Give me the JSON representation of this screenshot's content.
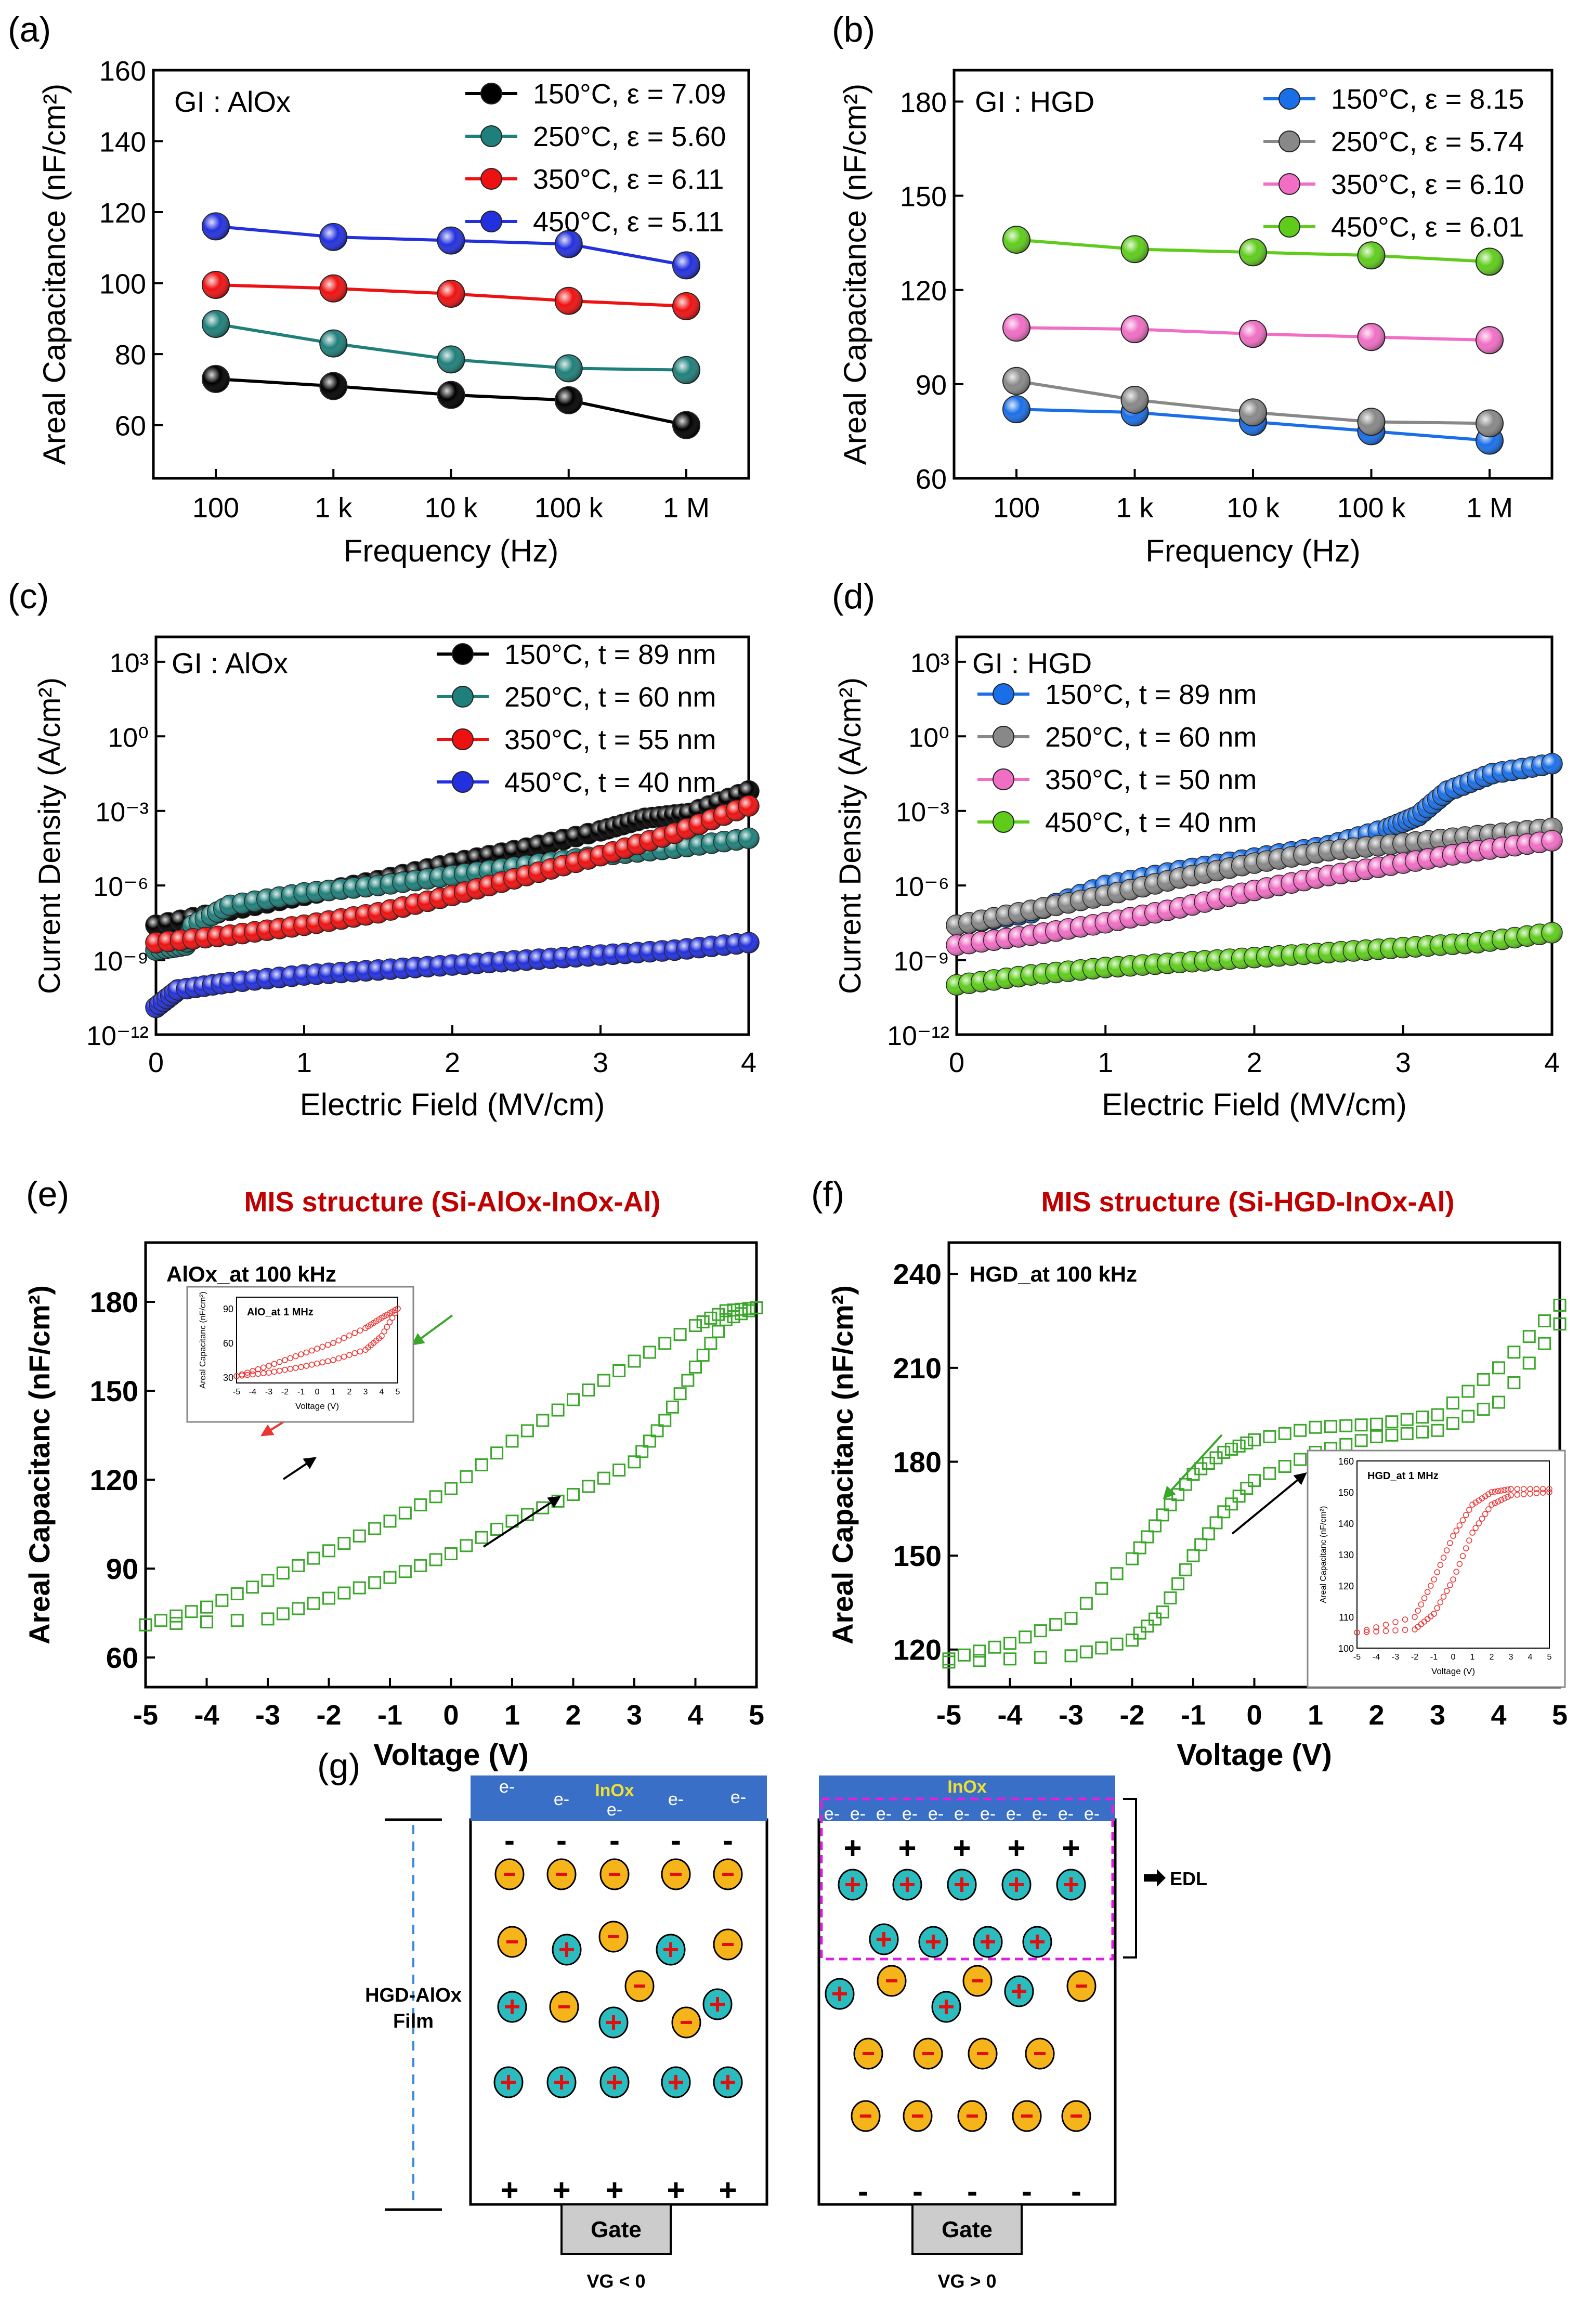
{
  "colors": {
    "c150": "#000000",
    "c250": "#1f7f7a",
    "c350": "#ee1111",
    "c450": "#2330dd",
    "h150": "#1a6fe8",
    "h250": "#888888",
    "h350": "#f06ec4",
    "h450": "#5fcc1c",
    "loop": "#3aa62a",
    "inset": "#ee3333",
    "title": "#c00000",
    "bar": "#3a6fc8",
    "minus": "#f5b51a",
    "plus": "#2bbcc0",
    "inox": "#f0e030",
    "edl": "#e020e0"
  },
  "panels": {
    "a": "(a)",
    "b": "(b)",
    "c": "(c)",
    "d": "(d)",
    "e": "(e)",
    "f": "(f)",
    "g": "(g)"
  },
  "chart_data": [
    {
      "id": "a",
      "type": "line",
      "annotation": "GI : AlOx",
      "xlabel": "Frequency (Hz)",
      "ylabel": "Areal Capacitance (nF/cm²)",
      "categories": [
        "100",
        "1 k",
        "10 k",
        "100 k",
        "1 M"
      ],
      "ylim": [
        45,
        160
      ],
      "yticks": [
        60,
        80,
        100,
        120,
        140,
        160
      ],
      "series": [
        {
          "name": "150°C, ε = 7.09",
          "color": "#000000",
          "values": [
            73,
            71,
            68.5,
            67,
            60
          ]
        },
        {
          "name": "250°C, ε = 5.60",
          "color": "#1f7f7a",
          "values": [
            88.5,
            83,
            78.5,
            76,
            75.5
          ]
        },
        {
          "name": "350°C, ε = 6.11",
          "color": "#ee1111",
          "values": [
            99.5,
            98.5,
            97,
            95,
            93.5
          ]
        },
        {
          "name": "450°C, ε = 5.11",
          "color": "#2330dd",
          "values": [
            116,
            113,
            112,
            111,
            105
          ]
        }
      ]
    },
    {
      "id": "b",
      "type": "line",
      "annotation": "GI : HGD",
      "xlabel": "Frequency (Hz)",
      "ylabel": "Areal Capacitance (nF/cm²)",
      "categories": [
        "100",
        "1 k",
        "10 k",
        "100 k",
        "1 M"
      ],
      "ylim": [
        60,
        190
      ],
      "yticks": [
        60,
        90,
        120,
        150,
        180
      ],
      "series": [
        {
          "name": "150°C, ε = 8.15",
          "color": "#1a6fe8",
          "values": [
            82,
            81,
            78,
            75,
            72
          ]
        },
        {
          "name": "250°C, ε = 5.74",
          "color": "#888888",
          "values": [
            91,
            85,
            81,
            78,
            77.5
          ]
        },
        {
          "name": "350°C, ε = 6.10",
          "color": "#f06ec4",
          "values": [
            108,
            107.5,
            106,
            105,
            104
          ]
        },
        {
          "name": "450°C, ε = 6.01",
          "color": "#5fcc1c",
          "values": [
            136,
            133,
            132,
            131,
            129
          ]
        }
      ]
    },
    {
      "id": "c",
      "type": "line",
      "annotation": "GI : AlOx",
      "xlabel": "Electric Field (MV/cm)",
      "ylabel": "Current Density (A/cm²)",
      "xlim": [
        0,
        4
      ],
      "xticks": [
        0,
        1,
        2,
        3,
        4
      ],
      "ylim_log10": [
        -12,
        4
      ],
      "ytick_labels": [
        "10⁻¹²",
        "10⁻⁹",
        "10⁻⁶",
        "10⁻³",
        "10⁰",
        "10³"
      ],
      "series": [
        {
          "name": "150°C, t = 89 nm",
          "color": "#000000",
          "x": [
            0,
            0.5,
            1,
            1.5,
            2,
            2.5,
            3,
            3.3,
            3.6,
            4
          ],
          "log_y": [
            -7.6,
            -7.0,
            -6.4,
            -5.8,
            -5.1,
            -4.5,
            -3.8,
            -3.3,
            -3.1,
            -2.2
          ]
        },
        {
          "name": "250°C, t = 60 nm",
          "color": "#1f7f7a",
          "x": [
            0,
            0.2,
            0.25,
            0.5,
            1,
            1.5,
            2,
            2.5,
            3,
            3.5,
            4
          ],
          "log_y": [
            -8.6,
            -8.4,
            -7.6,
            -6.8,
            -6.3,
            -6.0,
            -5.6,
            -5.2,
            -4.8,
            -4.5,
            -4.1
          ]
        },
        {
          "name": "350°C, t = 55 nm",
          "color": "#ee1111",
          "x": [
            0,
            0.5,
            1,
            1.5,
            2,
            2.5,
            3,
            3.5,
            4
          ],
          "log_y": [
            -8.3,
            -8.0,
            -7.6,
            -7.1,
            -6.4,
            -5.6,
            -4.8,
            -3.9,
            -2.8
          ]
        },
        {
          "name": "450°C, t = 40 nm",
          "color": "#2330dd",
          "x": [
            0,
            0.15,
            0.5,
            1,
            1.5,
            2,
            2.5,
            3,
            3.5,
            4
          ],
          "log_y": [
            -10.9,
            -10.2,
            -9.9,
            -9.6,
            -9.4,
            -9.2,
            -9.0,
            -8.8,
            -8.6,
            -8.3
          ]
        }
      ]
    },
    {
      "id": "d",
      "type": "line",
      "annotation": "GI : HGD",
      "xlabel": "Electric Field (MV/cm)",
      "ylabel": "Current Density (A/cm²)",
      "xlim": [
        0,
        4
      ],
      "xticks": [
        0,
        1,
        2,
        3,
        4
      ],
      "ylim_log10": [
        -12,
        4
      ],
      "ytick_labels": [
        "10⁻¹²",
        "10⁻⁹",
        "10⁻⁶",
        "10⁻³",
        "10⁰",
        "10³"
      ],
      "series": [
        {
          "name": "150°C, t = 89 nm",
          "color": "#1a6fe8",
          "x": [
            0,
            0.5,
            1,
            1.5,
            2,
            2.5,
            2.9,
            3.1,
            3.3,
            3.6,
            4
          ],
          "log_y": [
            -7.6,
            -7.1,
            -6.0,
            -5.4,
            -4.9,
            -4.4,
            -3.7,
            -3.2,
            -2.2,
            -1.5,
            -1.1
          ]
        },
        {
          "name": "250°C, t = 60 nm",
          "color": "#888888",
          "x": [
            0,
            0.5,
            1,
            1.5,
            2,
            2.5,
            3,
            3.5,
            4
          ],
          "log_y": [
            -7.6,
            -7.0,
            -6.4,
            -5.7,
            -5.1,
            -4.6,
            -4.3,
            -4.0,
            -3.7
          ]
        },
        {
          "name": "350°C, t = 50 nm",
          "color": "#f06ec4",
          "x": [
            0,
            0.5,
            1,
            1.5,
            2,
            2.5,
            3,
            3.5,
            4
          ],
          "log_y": [
            -8.4,
            -8.0,
            -7.5,
            -6.9,
            -6.2,
            -5.6,
            -5.1,
            -4.6,
            -4.2
          ]
        },
        {
          "name": "450°C, t = 40 nm",
          "color": "#5fcc1c",
          "x": [
            0,
            0.5,
            1,
            1.5,
            2,
            2.5,
            3,
            3.5,
            4
          ],
          "log_y": [
            -10.0,
            -9.6,
            -9.3,
            -9.1,
            -8.9,
            -8.7,
            -8.5,
            -8.3,
            -7.9
          ]
        }
      ]
    },
    {
      "id": "e",
      "type": "scatter",
      "title": "MIS structure (Si-AlOx-InOx-Al)",
      "annotation": "AlOx_at 100 kHz",
      "xlabel": "Voltage (V)",
      "ylabel": "Areal Capacitanc (nF/cm²)",
      "xlim": [
        -5,
        5
      ],
      "xticks": [
        -5,
        -4,
        -3,
        -2,
        -1,
        0,
        1,
        2,
        3,
        4,
        5
      ],
      "ylim": [
        50,
        200
      ],
      "yticks": [
        60,
        90,
        120,
        150,
        180
      ],
      "forward": {
        "x": [
          -5,
          -3,
          -2,
          -1,
          0,
          1,
          2,
          3,
          3.5,
          4,
          4.5,
          5
        ],
        "y": [
          71,
          73,
          80,
          87,
          95,
          106,
          115,
          126,
          140,
          158,
          174,
          178
        ]
      },
      "reverse": {
        "x": [
          5,
          4.5,
          4,
          3,
          2,
          1,
          0,
          -1,
          -2,
          -3,
          -4,
          -5
        ],
        "y": [
          178,
          177,
          172,
          160,
          147,
          133,
          117,
          106,
          96,
          86,
          77,
          71
        ]
      },
      "inset": {
        "annotation": "AlO_at 1 MHz",
        "xlabel": "Voltage (V)",
        "ylabel": "Areal Capacitanc (nF/cm²)",
        "xlim": [
          -5,
          5
        ],
        "xticks": [
          -5,
          -4,
          -3,
          -2,
          -1,
          0,
          1,
          2,
          3,
          4,
          5
        ],
        "ylim": [
          25,
          100
        ],
        "yticks": [
          30,
          60,
          90
        ],
        "forward": {
          "x": [
            -5,
            -3,
            -1,
            1,
            3,
            4,
            5
          ],
          "y": [
            31,
            34,
            39,
            45,
            54,
            66,
            90
          ]
        },
        "reverse": {
          "x": [
            5,
            4,
            3,
            1,
            -1,
            -3,
            -5
          ],
          "y": [
            90,
            82,
            73,
            60,
            50,
            40,
            31
          ]
        }
      }
    },
    {
      "id": "f",
      "type": "scatter",
      "title": "MIS structure (Si-HGD-InOx-Al)",
      "annotation": "HGD_at 100 kHz",
      "xlabel": "Voltage (V)",
      "ylabel": "Areal Capacitanc (nF/cm²)",
      "xlim": [
        -5,
        5
      ],
      "xticks": [
        -5,
        -4,
        -3,
        -2,
        -1,
        0,
        1,
        2,
        3,
        4,
        5
      ],
      "ylim": [
        108,
        250
      ],
      "yticks": [
        120,
        150,
        180,
        210,
        240
      ],
      "forward": {
        "x": [
          -5,
          -3,
          -2,
          -1.5,
          -1,
          -0.5,
          0,
          1,
          2,
          3,
          4,
          5
        ],
        "y": [
          116,
          118,
          123,
          132,
          150,
          164,
          174,
          183,
          188,
          190,
          199,
          224
        ]
      },
      "reverse": {
        "x": [
          5,
          4,
          3,
          2,
          1,
          0,
          -0.5,
          -1,
          -1.5,
          -2,
          -3,
          -4,
          -5
        ],
        "y": [
          230,
          210,
          195,
          192,
          191,
          187,
          183,
          176,
          163,
          149,
          130,
          122,
          117
        ]
      },
      "inset": {
        "annotation": "HGD_at 1 MHz",
        "xlabel": "Voltage (V)",
        "ylabel": "Areal Capacitanc (nF/cm²)",
        "xlim": [
          -5,
          5
        ],
        "xticks": [
          -5,
          -4,
          -3,
          -2,
          -1,
          0,
          1,
          2,
          3,
          4,
          5
        ],
        "ylim": [
          100,
          160
        ],
        "yticks": [
          100,
          110,
          120,
          130,
          140,
          150,
          160
        ],
        "forward": {
          "x": [
            -5,
            -2,
            -1,
            0,
            1,
            2,
            3,
            5
          ],
          "y": [
            105,
            106,
            111,
            122,
            137,
            146,
            149,
            150
          ]
        },
        "reverse": {
          "x": [
            5,
            3,
            2,
            1,
            0,
            -1,
            -2,
            -5
          ],
          "y": [
            151,
            151,
            150,
            146,
            136,
            122,
            110,
            105
          ]
        }
      }
    }
  ],
  "diagram": {
    "film_label_1": "HGD-AlOx",
    "film_label_2": "Film",
    "edl": "EDL",
    "left": {
      "top_label": "InOx",
      "gate": "Gate",
      "condition": "VG < 0"
    },
    "right": {
      "top_label": "InOx",
      "gate": "Gate",
      "condition": "VG > 0"
    },
    "electron": "e-",
    "minus": "-",
    "plus": "+"
  }
}
